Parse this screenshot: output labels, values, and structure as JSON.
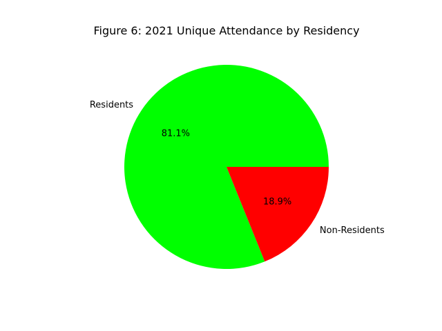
{
  "chart_data": {
    "type": "pie",
    "title": "Figure 6: 2021 Unique Attendance by Residency",
    "slices": [
      {
        "label": "Residents",
        "percent": 81.1,
        "percent_label": "81.1%",
        "color": "#00ff00"
      },
      {
        "label": "Non-Residents",
        "percent": 18.9,
        "percent_label": "18.9%",
        "color": "#ff0000"
      }
    ]
  }
}
